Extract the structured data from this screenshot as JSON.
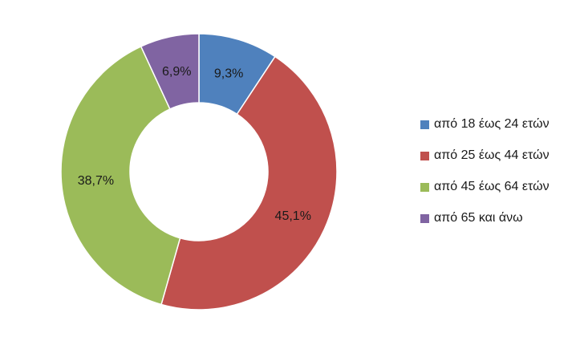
{
  "chart_data": {
    "type": "pie",
    "donut": true,
    "legend_position": "right",
    "categories": [
      "από 18 έως 24 ετών",
      "από 25 έως 44 ετών",
      "από 45 έως 64 ετών",
      "από 65 και άνω"
    ],
    "values": [
      9.3,
      45.1,
      38.7,
      6.9
    ],
    "value_labels": [
      "9,3%",
      "45,1%",
      "38,7%",
      "6,9%"
    ],
    "colors": [
      "#4F81BD",
      "#C0504D",
      "#9BBB59",
      "#8064A2"
    ]
  }
}
